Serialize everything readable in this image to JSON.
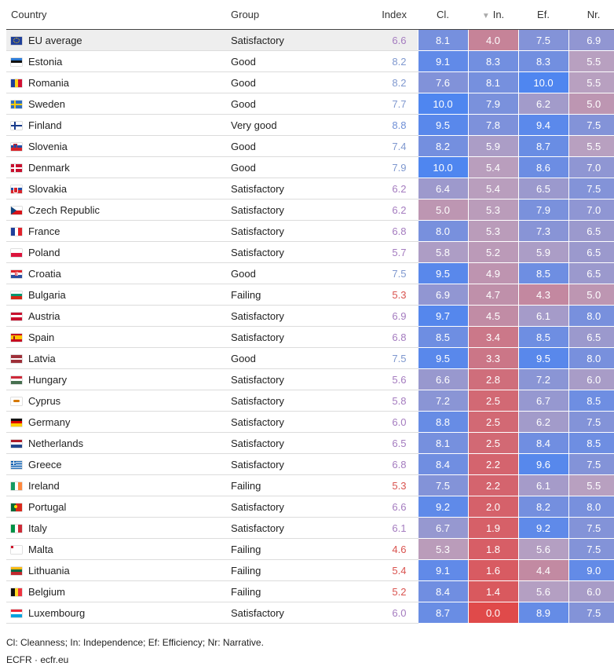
{
  "header": {
    "country": "Country",
    "group": "Group",
    "index": "Index",
    "cl": "Cl.",
    "in_sort_icon": "▼",
    "in": "In.",
    "ef": "Ef.",
    "nr": "Nr."
  },
  "colors": {
    "index_satisfactory": "#a47bbf",
    "index_good": "#7f98cf",
    "index_very_good": "#6f8fd6",
    "index_failing": "#d9534f",
    "high": "#4f86f0",
    "mid": "#b8a0c0",
    "low": "#e04a4a"
  },
  "chart_data": {
    "type": "table",
    "columns": [
      "Country",
      "Group",
      "Index",
      "Cl.",
      "In.",
      "Ef.",
      "Nr."
    ],
    "sorted_by": "In.",
    "rows": [
      {
        "country": "EU average",
        "flag": "eu",
        "group": "Satisfactory",
        "index": "6.6",
        "cl": "8.1",
        "in": "4.0",
        "ef": "7.5",
        "nr": "6.9"
      },
      {
        "country": "Estonia",
        "flag": "ee",
        "group": "Good",
        "index": "8.2",
        "cl": "9.1",
        "in": "8.3",
        "ef": "8.3",
        "nr": "5.5"
      },
      {
        "country": "Romania",
        "flag": "ro",
        "group": "Good",
        "index": "8.2",
        "cl": "7.6",
        "in": "8.1",
        "ef": "10.0",
        "nr": "5.5"
      },
      {
        "country": "Sweden",
        "flag": "se",
        "group": "Good",
        "index": "7.7",
        "cl": "10.0",
        "in": "7.9",
        "ef": "6.2",
        "nr": "5.0"
      },
      {
        "country": "Finland",
        "flag": "fi",
        "group": "Very good",
        "index": "8.8",
        "cl": "9.5",
        "in": "7.8",
        "ef": "9.4",
        "nr": "7.5"
      },
      {
        "country": "Slovenia",
        "flag": "si",
        "group": "Good",
        "index": "7.4",
        "cl": "8.2",
        "in": "5.9",
        "ef": "8.7",
        "nr": "5.5"
      },
      {
        "country": "Denmark",
        "flag": "dk",
        "group": "Good",
        "index": "7.9",
        "cl": "10.0",
        "in": "5.4",
        "ef": "8.6",
        "nr": "7.0"
      },
      {
        "country": "Slovakia",
        "flag": "sk",
        "group": "Satisfactory",
        "index": "6.2",
        "cl": "6.4",
        "in": "5.4",
        "ef": "6.5",
        "nr": "7.5"
      },
      {
        "country": "Czech Republic",
        "flag": "cz",
        "group": "Satisfactory",
        "index": "6.2",
        "cl": "5.0",
        "in": "5.3",
        "ef": "7.9",
        "nr": "7.0"
      },
      {
        "country": "France",
        "flag": "fr",
        "group": "Satisfactory",
        "index": "6.8",
        "cl": "8.0",
        "in": "5.3",
        "ef": "7.3",
        "nr": "6.5"
      },
      {
        "country": "Poland",
        "flag": "pl",
        "group": "Satisfactory",
        "index": "5.7",
        "cl": "5.8",
        "in": "5.2",
        "ef": "5.9",
        "nr": "6.5"
      },
      {
        "country": "Croatia",
        "flag": "hr",
        "group": "Good",
        "index": "7.5",
        "cl": "9.5",
        "in": "4.9",
        "ef": "8.5",
        "nr": "6.5"
      },
      {
        "country": "Bulgaria",
        "flag": "bg",
        "group": "Failing",
        "index": "5.3",
        "cl": "6.9",
        "in": "4.7",
        "ef": "4.3",
        "nr": "5.0"
      },
      {
        "country": "Austria",
        "flag": "at",
        "group": "Satisfactory",
        "index": "6.9",
        "cl": "9.7",
        "in": "4.5",
        "ef": "6.1",
        "nr": "8.0"
      },
      {
        "country": "Spain",
        "flag": "es",
        "group": "Satisfactory",
        "index": "6.8",
        "cl": "8.5",
        "in": "3.4",
        "ef": "8.5",
        "nr": "6.5"
      },
      {
        "country": "Latvia",
        "flag": "lv",
        "group": "Good",
        "index": "7.5",
        "cl": "9.5",
        "in": "3.3",
        "ef": "9.5",
        "nr": "8.0"
      },
      {
        "country": "Hungary",
        "flag": "hu",
        "group": "Satisfactory",
        "index": "5.6",
        "cl": "6.6",
        "in": "2.8",
        "ef": "7.2",
        "nr": "6.0"
      },
      {
        "country": "Cyprus",
        "flag": "cy",
        "group": "Satisfactory",
        "index": "5.8",
        "cl": "7.2",
        "in": "2.5",
        "ef": "6.7",
        "nr": "8.5"
      },
      {
        "country": "Germany",
        "flag": "de",
        "group": "Satisfactory",
        "index": "6.0",
        "cl": "8.8",
        "in": "2.5",
        "ef": "6.2",
        "nr": "7.5"
      },
      {
        "country": "Netherlands",
        "flag": "nl",
        "group": "Satisfactory",
        "index": "6.5",
        "cl": "8.1",
        "in": "2.5",
        "ef": "8.4",
        "nr": "8.5"
      },
      {
        "country": "Greece",
        "flag": "gr",
        "group": "Satisfactory",
        "index": "6.8",
        "cl": "8.4",
        "in": "2.2",
        "ef": "9.6",
        "nr": "7.5"
      },
      {
        "country": "Ireland",
        "flag": "ie",
        "group": "Failing",
        "index": "5.3",
        "cl": "7.5",
        "in": "2.2",
        "ef": "6.1",
        "nr": "5.5"
      },
      {
        "country": "Portugal",
        "flag": "pt",
        "group": "Satisfactory",
        "index": "6.6",
        "cl": "9.2",
        "in": "2.0",
        "ef": "8.2",
        "nr": "8.0"
      },
      {
        "country": "Italy",
        "flag": "it",
        "group": "Satisfactory",
        "index": "6.1",
        "cl": "6.7",
        "in": "1.9",
        "ef": "9.2",
        "nr": "7.5"
      },
      {
        "country": "Malta",
        "flag": "mt",
        "group": "Failing",
        "index": "4.6",
        "cl": "5.3",
        "in": "1.8",
        "ef": "5.6",
        "nr": "7.5"
      },
      {
        "country": "Lithuania",
        "flag": "lt",
        "group": "Failing",
        "index": "5.4",
        "cl": "9.1",
        "in": "1.6",
        "ef": "4.4",
        "nr": "9.0"
      },
      {
        "country": "Belgium",
        "flag": "be",
        "group": "Failing",
        "index": "5.2",
        "cl": "8.4",
        "in": "1.4",
        "ef": "5.6",
        "nr": "6.0"
      },
      {
        "country": "Luxembourg",
        "flag": "lu",
        "group": "Satisfactory",
        "index": "6.0",
        "cl": "8.7",
        "in": "0.0",
        "ef": "8.9",
        "nr": "7.5"
      }
    ]
  },
  "footer": {
    "legend": "Cl: Cleanness; In: Independence; Ef: Efficiency; Nr: Narrative.",
    "source": "ECFR · ecfr.eu"
  }
}
